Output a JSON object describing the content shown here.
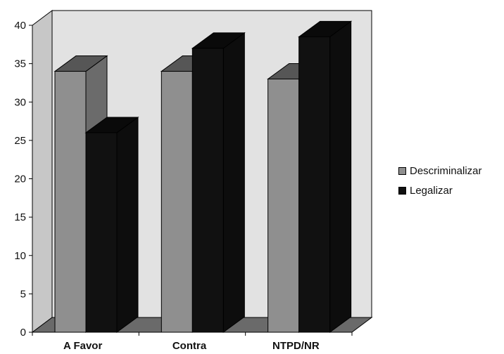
{
  "chart_data": {
    "type": "bar",
    "style": "3d-clustered",
    "categories": [
      "A Favor",
      "Contra",
      "NTPD/NR"
    ],
    "series": [
      {
        "name": "Descriminalizar",
        "values": [
          34,
          34,
          33
        ],
        "color": "#8f8f8f"
      },
      {
        "name": "Legalizar",
        "values": [
          26,
          37,
          38.5
        ],
        "color": "#111111"
      }
    ],
    "title": "",
    "xlabel": "",
    "ylabel": "",
    "ylim": [
      0,
      40
    ],
    "yticks": [
      "0",
      "5",
      "10",
      "15",
      "20",
      "25",
      "30",
      "35",
      "40"
    ],
    "grid": false,
    "legend_position": "right",
    "wall_color": "#e2e2e2",
    "floor_color": "#6a6a6a"
  }
}
